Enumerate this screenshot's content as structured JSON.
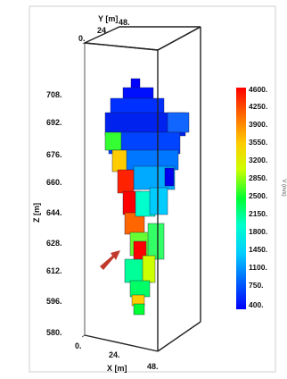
{
  "axes": {
    "y_title": "Y [m]",
    "y_ticks": [
      "0.",
      "24.",
      "48."
    ],
    "z_title": "Z [m]",
    "z_ticks": [
      "708.",
      "692.",
      "676.",
      "660.",
      "644.",
      "628.",
      "612.",
      "596.",
      "580."
    ],
    "x_title": "X [m]",
    "x_ticks": [
      "0.",
      "24.",
      "48."
    ]
  },
  "colorbar": {
    "labels": [
      "4600.",
      "4250.",
      "3900.",
      "3550.",
      "3200.",
      "2850.",
      "2500.",
      "2150.",
      "1800.",
      "1450.",
      "1100.",
      "750.",
      "400."
    ],
    "colors_top_to_bottom": [
      "#ff0000",
      "#ff6600",
      "#ffcc00",
      "#ccff00",
      "#00ff33",
      "#00ffcc",
      "#00ccff",
      "#0066ff",
      "#0000ff"
    ],
    "side_text": "V (m/s)"
  },
  "annotation": {
    "arrow_color": "#c0392b"
  }
}
